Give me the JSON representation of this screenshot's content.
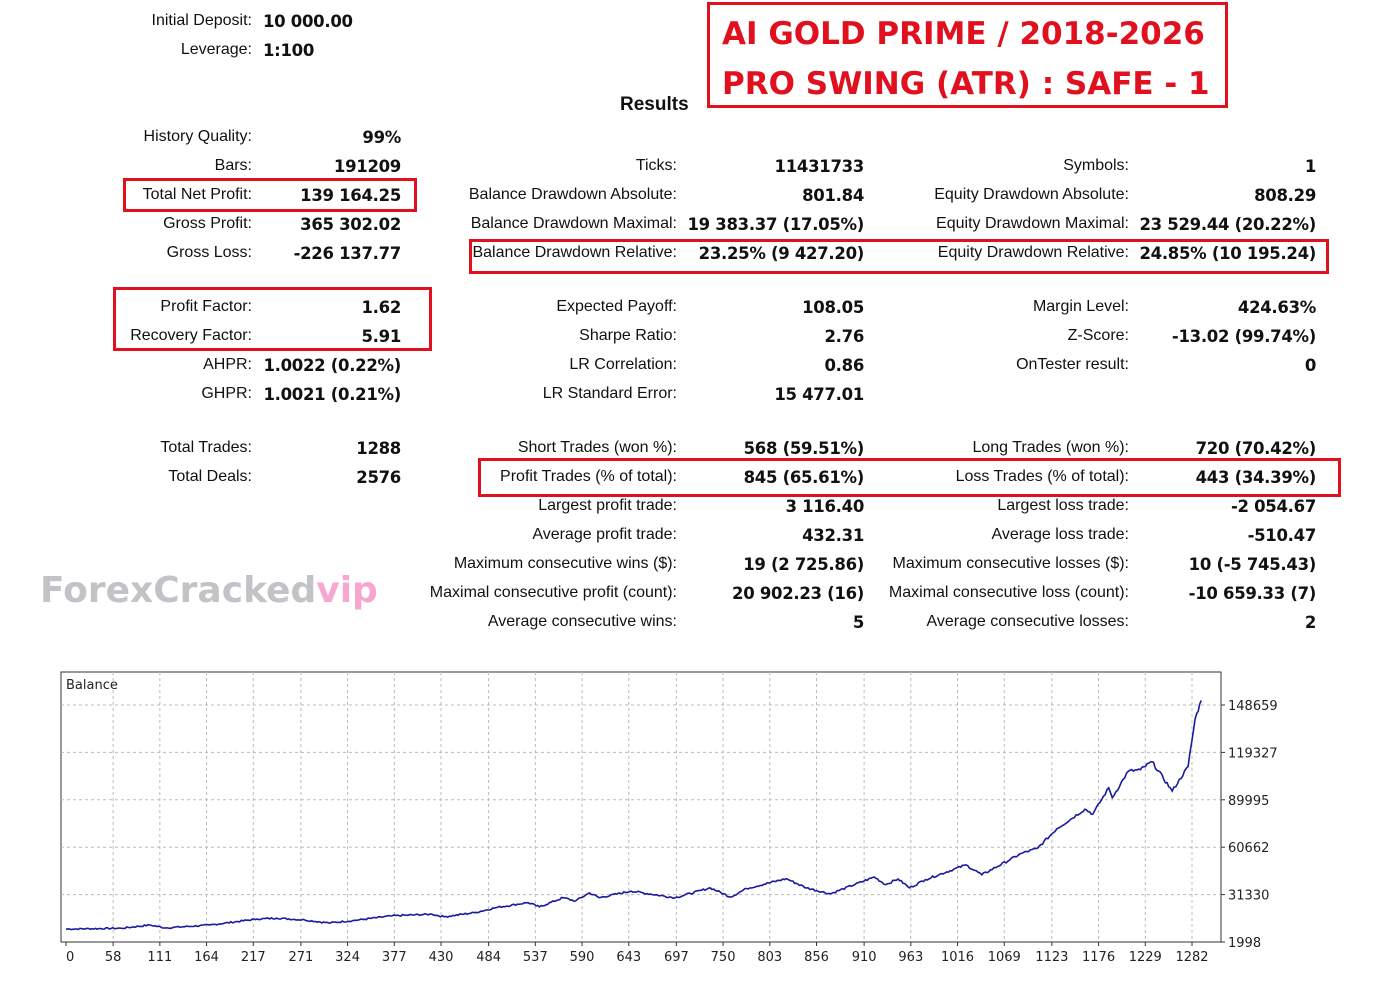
{
  "header": {
    "initial_deposit_label": "Initial Deposit:",
    "initial_deposit": "10 000.00",
    "leverage_label": "Leverage:",
    "leverage": "1:100",
    "title_line1": "AI GOLD PRIME / 2018-2026",
    "title_line2": "PRO SWING (ATR) : SAFE - 1",
    "results_heading": "Results"
  },
  "stats": {
    "col1": [
      {
        "label": "History Quality:",
        "value": "99%"
      },
      {
        "label": "Bars:",
        "value": "191209"
      },
      {
        "label": "Total Net Profit:",
        "value": "139 164.25"
      },
      {
        "label": "Gross Profit:",
        "value": "365 302.02"
      },
      {
        "label": "Gross Loss:",
        "value": "-226 137.77"
      },
      {
        "label": "Profit Factor:",
        "value": "1.62"
      },
      {
        "label": "Recovery Factor:",
        "value": "5.91"
      },
      {
        "label": "AHPR:",
        "value": "1.0022 (0.22%)"
      },
      {
        "label": "GHPR:",
        "value": "1.0021 (0.21%)"
      },
      {
        "label": "Total Trades:",
        "value": "1288"
      },
      {
        "label": "Total Deals:",
        "value": "2576"
      }
    ],
    "col2": [
      {
        "label": "Ticks:",
        "value": "11431733"
      },
      {
        "label": "Balance Drawdown Absolute:",
        "value": "801.84"
      },
      {
        "label": "Balance Drawdown Maximal:",
        "value": "19 383.37 (17.05%)"
      },
      {
        "label": "Balance Drawdown Relative:",
        "value": "23.25% (9 427.20)"
      },
      {
        "label": "Expected Payoff:",
        "value": "108.05"
      },
      {
        "label": "Sharpe Ratio:",
        "value": "2.76"
      },
      {
        "label": "LR Correlation:",
        "value": "0.86"
      },
      {
        "label": "LR Standard Error:",
        "value": "15 477.01"
      },
      {
        "label": "Short Trades (won %):",
        "value": "568 (59.51%)"
      },
      {
        "label": "Profit Trades (% of total):",
        "value": "845 (65.61%)"
      },
      {
        "label": "Largest profit trade:",
        "value": "3 116.40"
      },
      {
        "label": "Average profit trade:",
        "value": "432.31"
      },
      {
        "label": "Maximum consecutive wins ($):",
        "value": "19 (2 725.86)"
      },
      {
        "label": "Maximal consecutive profit (count):",
        "value": "20 902.23 (16)"
      },
      {
        "label": "Average consecutive wins:",
        "value": "5"
      }
    ],
    "col3": [
      {
        "label": "Symbols:",
        "value": "1"
      },
      {
        "label": "Equity Drawdown Absolute:",
        "value": "808.29"
      },
      {
        "label": "Equity Drawdown Maximal:",
        "value": "23 529.44 (20.22%)"
      },
      {
        "label": "Equity Drawdown Relative:",
        "value": "24.85% (10 195.24)"
      },
      {
        "label": "Margin Level:",
        "value": "424.63%"
      },
      {
        "label": "Z-Score:",
        "value": "-13.02 (99.74%)"
      },
      {
        "label": "OnTester result:",
        "value": "0"
      },
      {
        "label": "Long Trades (won %):",
        "value": "720 (70.42%)"
      },
      {
        "label": "Loss Trades (% of total):",
        "value": "443 (34.39%)"
      },
      {
        "label": "Largest loss trade:",
        "value": "-2 054.67"
      },
      {
        "label": "Average loss trade:",
        "value": "-510.47"
      },
      {
        "label": "Maximum consecutive losses ($):",
        "value": "10 (-5 745.43)"
      },
      {
        "label": "Maximal consecutive loss (count):",
        "value": "-10 659.33 (7)"
      },
      {
        "label": "Average consecutive losses:",
        "value": "2"
      }
    ]
  },
  "watermark": {
    "main": "ForexCracked",
    "suffix": "vip"
  },
  "colors": {
    "highlight": "#e0101e",
    "line": "#1a1a9c"
  },
  "chart_data": {
    "type": "line",
    "title": "Balance",
    "xlabel": "",
    "ylabel": "",
    "xlim": [
      0,
      1288
    ],
    "ylim": [
      1998,
      163000
    ],
    "x_ticks": [
      0,
      58,
      111,
      164,
      217,
      271,
      324,
      377,
      430,
      484,
      537,
      590,
      643,
      697,
      750,
      803,
      856,
      910,
      963,
      1016,
      1069,
      1123,
      1176,
      1229,
      1282
    ],
    "y_ticks": [
      1998,
      31330,
      60662,
      89995,
      119327,
      148659
    ],
    "grid": true,
    "series": [
      {
        "name": "Balance",
        "x": [
          0,
          63,
          95,
          113,
          163,
          217,
          239,
          271,
          298,
          325,
          370,
          415,
          429,
          465,
          488,
          524,
          537,
          564,
          578,
          594,
          605,
          641,
          691,
          731,
          754,
          772,
          817,
          840,
          867,
          917,
          930,
          944,
          957,
          975,
          1021,
          1039,
          1084,
          1102,
          1124,
          1156,
          1165,
          1183,
          1187,
          1205,
          1219,
          1232,
          1255,
          1273,
          1281,
          1288
        ],
        "y": [
          10000,
          10500,
          12500,
          10700,
          12500,
          16200,
          16800,
          15600,
          13800,
          15200,
          18200,
          19200,
          17600,
          20300,
          23300,
          26400,
          23700,
          29400,
          27400,
          32400,
          29400,
          33500,
          29400,
          35500,
          29800,
          35100,
          41200,
          35500,
          31800,
          42200,
          37500,
          41000,
          35500,
          40600,
          49700,
          43600,
          56800,
          59900,
          72000,
          84200,
          81200,
          97400,
          91300,
          107600,
          108600,
          113600,
          95400,
          110600,
          140000,
          151500
        ]
      }
    ]
  }
}
